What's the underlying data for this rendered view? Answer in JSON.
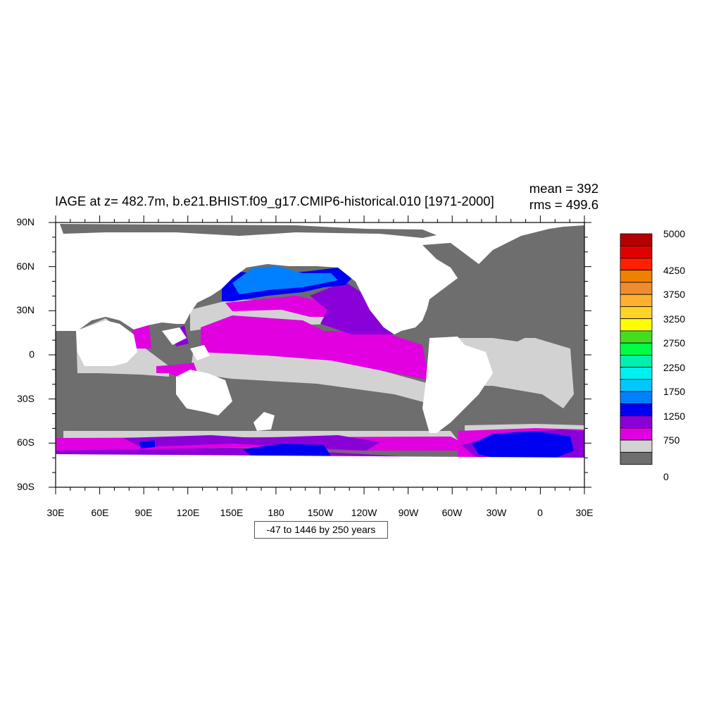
{
  "header": {
    "title": "IAGE at z= 482.7m, b.e21.BHIST.f09_g17.CMIP6-historical.010 [1971-2000]",
    "mean": "mean = 392",
    "rms": "rms = 499.6"
  },
  "map": {
    "lat_ticks": [
      "90N",
      "60N",
      "30N",
      "0",
      "30S",
      "60S",
      "90S"
    ],
    "lon_ticks": [
      "30E",
      "60E",
      "90E",
      "120E",
      "150E",
      "180",
      "150W",
      "120W",
      "90W",
      "60W",
      "30W",
      "0",
      "30E"
    ],
    "range_label": "-47 to 1446 by 250 years",
    "land_color": "#ffffff"
  },
  "colorbar": {
    "colors": [
      "#B40000",
      "#E10000",
      "#FF2000",
      "#F08000",
      "#F08C30",
      "#FFB030",
      "#FFD228",
      "#FFFF00",
      "#44DD22",
      "#00FF44",
      "#00F0B0",
      "#00F0F0",
      "#00C8FF",
      "#0080FF",
      "#0000F0",
      "#8A00D8",
      "#E000E0",
      "#D2D2D2",
      "#6E6E6E"
    ],
    "labels": [
      "5000",
      "4250",
      "3750",
      "3250",
      "2750",
      "2250",
      "1750",
      "1250",
      "750",
      "0"
    ]
  }
}
